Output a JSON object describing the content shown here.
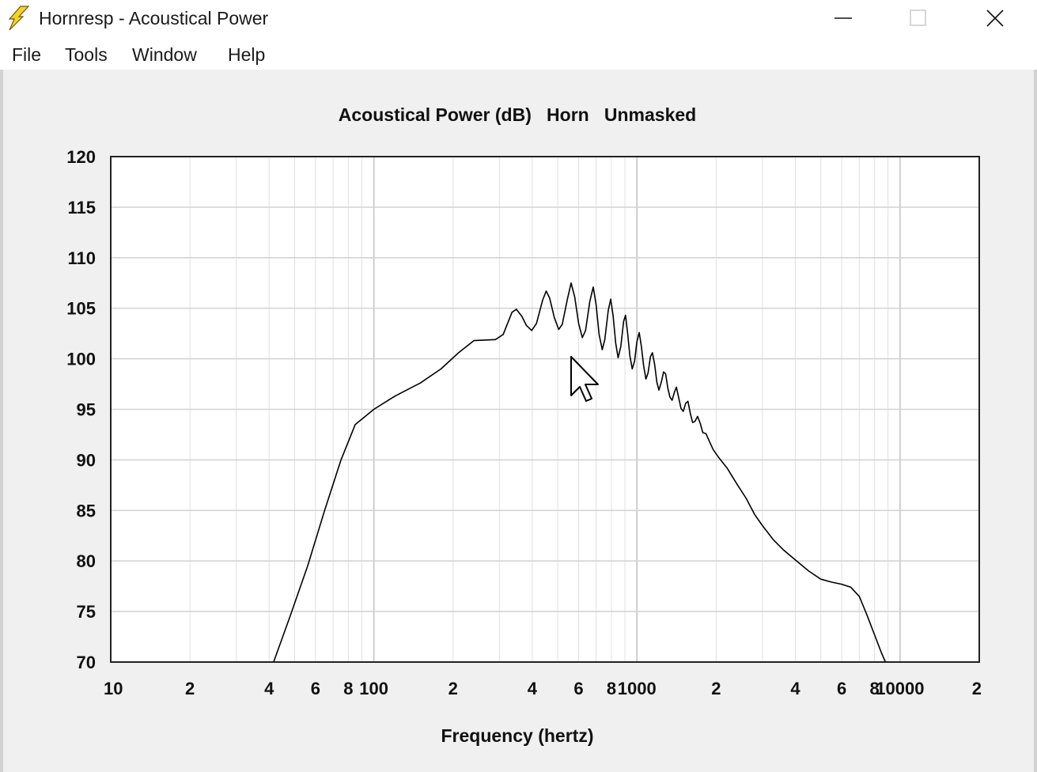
{
  "window": {
    "title": "Hornresp - Acoustical Power",
    "icon": "lightning-bolt-icon",
    "controls": [
      "minimize-icon",
      "maximize-icon",
      "close-icon"
    ]
  },
  "menu": [
    "File",
    "Tools",
    "Window",
    "Help"
  ],
  "colors": {
    "client_background": "#f0f0f0",
    "plot_background": "#ffffff",
    "grid": "#d4d4d4",
    "trace": "#000000",
    "icon": "#f5d22a"
  },
  "chart_data": {
    "type": "line",
    "title": "Acoustical Power (dB)   Horn   Unmasked",
    "xlabel": "Frequency (hertz)",
    "ylabel": "",
    "xscale": "log",
    "xlim": [
      10,
      20000
    ],
    "ylim": [
      70,
      120
    ],
    "grid": true,
    "x_tick_labels": [
      {
        "x": 10,
        "label": "10"
      },
      {
        "x": 20,
        "label": "2"
      },
      {
        "x": 40,
        "label": "4"
      },
      {
        "x": 60,
        "label": "6"
      },
      {
        "x": 80,
        "label": "8"
      },
      {
        "x": 100,
        "label": "100"
      },
      {
        "x": 200,
        "label": "2"
      },
      {
        "x": 400,
        "label": "4"
      },
      {
        "x": 600,
        "label": "6"
      },
      {
        "x": 800,
        "label": "8"
      },
      {
        "x": 1000,
        "label": "1000"
      },
      {
        "x": 2000,
        "label": "2"
      },
      {
        "x": 4000,
        "label": "4"
      },
      {
        "x": 6000,
        "label": "6"
      },
      {
        "x": 8000,
        "label": "8"
      },
      {
        "x": 10000,
        "label": "10000"
      },
      {
        "x": 20000,
        "label": "2"
      }
    ],
    "y_ticks": [
      70,
      75,
      80,
      85,
      90,
      95,
      100,
      105,
      110,
      115,
      120
    ],
    "series": [
      {
        "points": [
          [
            41.6,
            70
          ],
          [
            48,
            74.5
          ],
          [
            56,
            79.5
          ],
          [
            65,
            85
          ],
          [
            75,
            90
          ],
          [
            85,
            93.5
          ],
          [
            100,
            95
          ],
          [
            120,
            96.3
          ],
          [
            150,
            97.6
          ],
          [
            180,
            99
          ],
          [
            210,
            100.6
          ],
          [
            240,
            101.8
          ],
          [
            290,
            101.9
          ],
          [
            310,
            102.4
          ],
          [
            335,
            104.6
          ],
          [
            348,
            104.9
          ],
          [
            365,
            104.2
          ],
          [
            380,
            103.3
          ],
          [
            398,
            102.8
          ],
          [
            415,
            103.5
          ],
          [
            438,
            105.8
          ],
          [
            452,
            106.7
          ],
          [
            466,
            106
          ],
          [
            485,
            104.1
          ],
          [
            504,
            102.9
          ],
          [
            520,
            103.4
          ],
          [
            545,
            106
          ],
          [
            562,
            107.5
          ],
          [
            580,
            106.1
          ],
          [
            600,
            103.5
          ],
          [
            620,
            102.1
          ],
          [
            638,
            102.8
          ],
          [
            662,
            105.7
          ],
          [
            682,
            107.1
          ],
          [
            700,
            105.3
          ],
          [
            718,
            102.4
          ],
          [
            738,
            100.9
          ],
          [
            755,
            101.9
          ],
          [
            778,
            104.8
          ],
          [
            795,
            105.9
          ],
          [
            812,
            104.2
          ],
          [
            830,
            101.6
          ],
          [
            848,
            100.1
          ],
          [
            868,
            101.2
          ],
          [
            890,
            103.7
          ],
          [
            905,
            104.3
          ],
          [
            922,
            102.5
          ],
          [
            940,
            100.3
          ],
          [
            960,
            99
          ],
          [
            980,
            99.8
          ],
          [
            1000,
            101.7
          ],
          [
            1020,
            102.6
          ],
          [
            1040,
            101.2
          ],
          [
            1060,
            99.3
          ],
          [
            1082,
            98
          ],
          [
            1102,
            98.6
          ],
          [
            1125,
            100.2
          ],
          [
            1145,
            100.6
          ],
          [
            1168,
            99.4
          ],
          [
            1190,
            97.7
          ],
          [
            1212,
            96.9
          ],
          [
            1238,
            97.7
          ],
          [
            1262,
            98.7
          ],
          [
            1285,
            98.5
          ],
          [
            1310,
            97.1
          ],
          [
            1335,
            96.2
          ],
          [
            1360,
            95.9
          ],
          [
            1388,
            96.7
          ],
          [
            1412,
            97.2
          ],
          [
            1440,
            96.2
          ],
          [
            1470,
            95.1
          ],
          [
            1500,
            94.8
          ],
          [
            1532,
            95.6
          ],
          [
            1562,
            95.8
          ],
          [
            1595,
            94.6
          ],
          [
            1628,
            93.7
          ],
          [
            1662,
            93.8
          ],
          [
            1700,
            94.3
          ],
          [
            1740,
            93.6
          ],
          [
            1780,
            92.7
          ],
          [
            1830,
            92.6
          ],
          [
            1880,
            91.9
          ],
          [
            1950,
            91
          ],
          [
            2050,
            90.2
          ],
          [
            2200,
            89.2
          ],
          [
            2400,
            87.6
          ],
          [
            2600,
            86.2
          ],
          [
            2800,
            84.6
          ],
          [
            3000,
            83.5
          ],
          [
            3300,
            82.1
          ],
          [
            3600,
            81.1
          ],
          [
            4000,
            80.1
          ],
          [
            4500,
            79
          ],
          [
            5000,
            78.2
          ],
          [
            5500,
            77.9
          ],
          [
            6000,
            77.7
          ],
          [
            6500,
            77.4
          ],
          [
            7000,
            76.5
          ],
          [
            7500,
            74.6
          ],
          [
            8000,
            72.7
          ],
          [
            8500,
            70.9
          ],
          [
            8800,
            70
          ]
        ]
      }
    ]
  }
}
